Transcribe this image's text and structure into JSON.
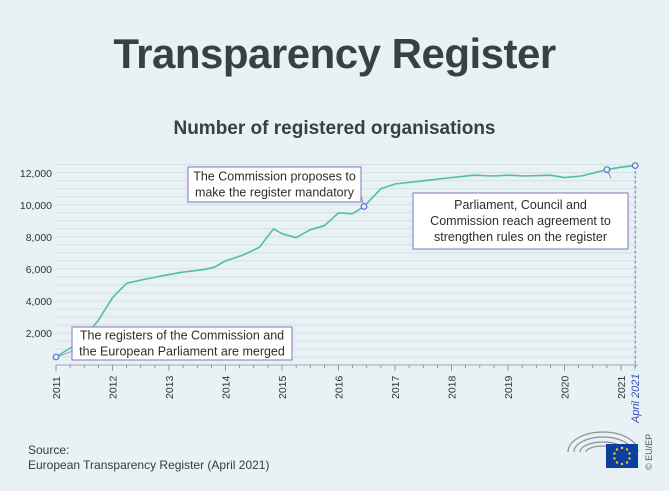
{
  "header": {
    "title": "Transparency Register",
    "subtitle": "Number of registered organisations"
  },
  "footer": {
    "source_label": "Source:",
    "source_text": "European Transparency Register (April 2021)",
    "credit": "© EU/EP"
  },
  "colors": {
    "line": "#4fc0a0",
    "annotation_border": "#8b7fcf",
    "marker": "#5b6fd6",
    "grid": "#b8c4c6",
    "axis_text": "#333333",
    "april_label": "#3a4fb5"
  },
  "chart_data": {
    "type": "line",
    "title": "Number of registered organisations",
    "xlabel": "",
    "ylabel": "",
    "ylim": [
      0,
      12800
    ],
    "xlim": [
      2011,
      2021.3
    ],
    "yticks": [
      2000,
      4000,
      6000,
      8000,
      10000,
      12000
    ],
    "ytick_labels": [
      "2,000",
      "4,000",
      "6,000",
      "8,000",
      "10,000",
      "12,000"
    ],
    "xticks": [
      2011,
      2012,
      2013,
      2014,
      2015,
      2016,
      2017,
      2018,
      2019,
      2020,
      2021
    ],
    "xtick_labels": [
      "2011",
      "2012",
      "2013",
      "2014",
      "2015",
      "2016",
      "2017",
      "2018",
      "2019",
      "2020",
      "2021"
    ],
    "end_label": "April 2021",
    "series": [
      {
        "name": "Registered organisations",
        "x": [
          2011.0,
          2011.45,
          2011.75,
          2012.0,
          2012.25,
          2012.5,
          2012.85,
          2013.25,
          2013.6,
          2013.8,
          2014.0,
          2014.3,
          2014.6,
          2014.85,
          2015.0,
          2015.25,
          2015.5,
          2015.75,
          2016.0,
          2016.25,
          2016.45,
          2016.75,
          2017.0,
          2017.5,
          2018.0,
          2018.4,
          2018.75,
          2019.0,
          2019.3,
          2019.75,
          2020.0,
          2020.3,
          2020.75,
          2021.0,
          2021.25
        ],
        "values": [
          500,
          1500,
          2800,
          4200,
          5100,
          5300,
          5550,
          5800,
          5950,
          6100,
          6500,
          6850,
          7350,
          8500,
          8200,
          7950,
          8450,
          8700,
          9500,
          9450,
          9900,
          11000,
          11300,
          11500,
          11700,
          11850,
          11800,
          11850,
          11800,
          11850,
          11700,
          11800,
          12200,
          12350,
          12450
        ]
      }
    ],
    "markers": [
      {
        "x": 2011.0,
        "y": 500
      },
      {
        "x": 2016.45,
        "y": 9900
      },
      {
        "x": 2020.75,
        "y": 12200
      },
      {
        "x": 2021.25,
        "y": 12450
      }
    ],
    "annotations": [
      {
        "lines": [
          "The registers of the Commission and",
          "the European Parliament are merged"
        ],
        "x": 2011.0,
        "y": 500
      },
      {
        "lines": [
          "The Commission proposes to",
          "make the register mandatory"
        ],
        "x": 2016.45,
        "y": 9900
      },
      {
        "lines": [
          "Parliament, Council and",
          "Commission reach agreement to",
          "strengthen rules on the register"
        ],
        "x": 2020.75,
        "y": 12200
      }
    ]
  }
}
